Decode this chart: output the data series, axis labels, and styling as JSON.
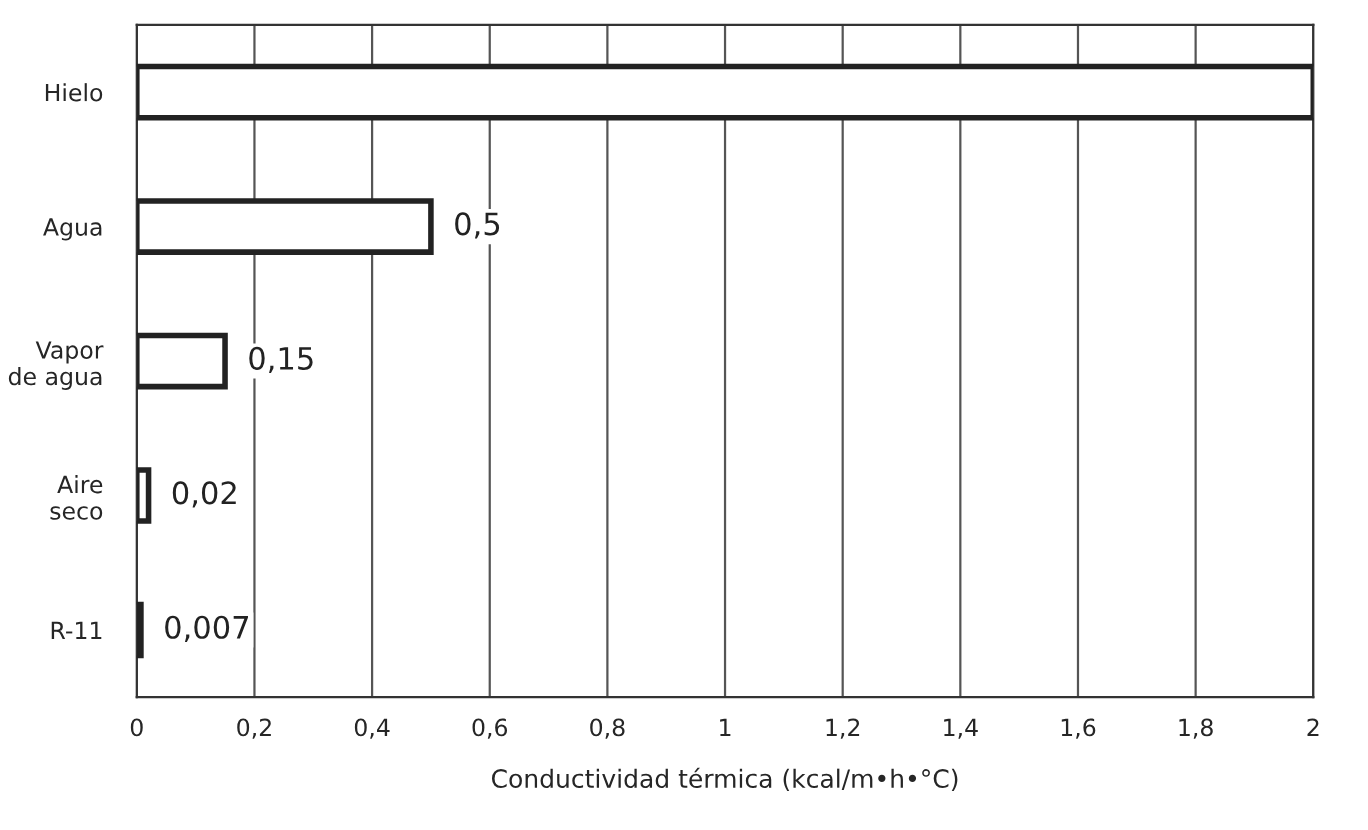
{
  "chart_data": {
    "type": "bar",
    "orientation": "horizontal",
    "xlabel": "Conductividad térmica (kcal/m•h•°C)",
    "categories": [
      "Hielo",
      "Agua",
      "Vapor\nde agua",
      "Aire\nseco",
      "R-11"
    ],
    "values": [
      2,
      0.5,
      0.15,
      0.02,
      0.007
    ],
    "value_labels": [
      null,
      "0,5",
      "0,15",
      "0,02",
      "0,007"
    ],
    "color": "#ffffff",
    "xlim": [
      0,
      2
    ],
    "xticks": [
      0,
      {
        "value": 0.2,
        "label": "0,2"
      },
      {
        "value": 0.4,
        "label": "0,4"
      },
      {
        "value": 0.6,
        "label": "0,6"
      },
      {
        "value": 0.8,
        "label": "0,8"
      },
      1,
      {
        "value": 1.2,
        "label": "1,2"
      },
      {
        "value": 1.4,
        "label": "1,4"
      },
      {
        "value": 1.6,
        "label": "1,6"
      },
      {
        "value": 1.8,
        "label": "1,8"
      },
      2
    ],
    "grid": "x",
    "legend": false
  }
}
